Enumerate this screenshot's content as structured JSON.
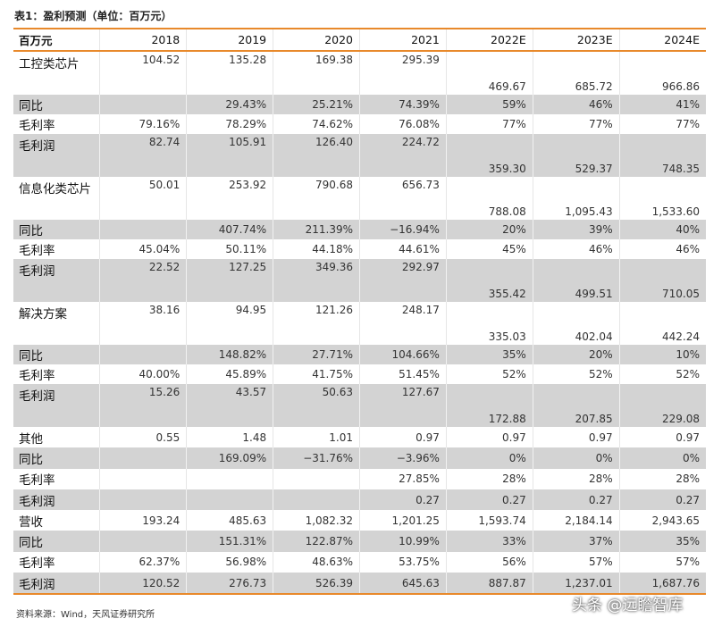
{
  "title": "表1：盈利预测（单位：百万元）",
  "table": {
    "header": [
      "百万元",
      "2018",
      "2019",
      "2020",
      "2021",
      "2022E",
      "2023E",
      "2024E"
    ],
    "rows": [
      [
        "工控类芯片",
        "104.52",
        "135.28",
        "169.38",
        "295.39",
        "469.67",
        "685.72",
        "966.86"
      ],
      [
        "同比",
        null,
        "29.43%",
        "25.21%",
        "74.39%",
        "59%",
        "46%",
        "41%"
      ],
      [
        "毛利率",
        "79.16%",
        "78.29%",
        "74.62%",
        "76.08%",
        "77%",
        "77%",
        "77%"
      ],
      [
        "毛利润",
        "82.74",
        "105.91",
        "126.40",
        "224.72",
        "359.30",
        "529.37",
        "748.35"
      ],
      [
        "信息化类芯片",
        "50.01",
        "253.92",
        "790.68",
        "656.73",
        "788.08",
        "1,095.43",
        "1,533.60"
      ],
      [
        "同比",
        null,
        "407.74%",
        "211.39%",
        "−16.94%",
        "20%",
        "39%",
        "40%"
      ],
      [
        "毛利率",
        "45.04%",
        "50.11%",
        "44.18%",
        "44.61%",
        "45%",
        "46%",
        "46%"
      ],
      [
        "毛利润",
        "22.52",
        "127.25",
        "349.36",
        "292.97",
        "355.42",
        "499.51",
        "710.05"
      ],
      [
        "解决方案",
        "38.16",
        "94.95",
        "121.26",
        "248.17",
        "335.03",
        "402.04",
        "442.24"
      ],
      [
        "同比",
        null,
        "148.82%",
        "27.71%",
        "104.66%",
        "35%",
        "20%",
        "10%"
      ],
      [
        "毛利率",
        "40.00%",
        "45.89%",
        "41.75%",
        "51.45%",
        "52%",
        "52%",
        "52%"
      ],
      [
        "毛利润",
        "15.26",
        "43.57",
        "50.63",
        "127.67",
        "172.88",
        "207.85",
        "229.08"
      ],
      [
        "其他",
        "0.55",
        "1.48",
        "1.01",
        "0.97",
        "0.97",
        "0.97",
        "0.97"
      ],
      [
        "同比",
        null,
        "169.09%",
        "−31.76%",
        "−3.96%",
        "0%",
        "0%",
        "0%"
      ],
      [
        "毛利率",
        null,
        null,
        null,
        "27.85%",
        "28%",
        "28%",
        "28%"
      ],
      [
        "毛利润",
        null,
        null,
        null,
        "0.27",
        "0.27",
        "0.27",
        "0.27"
      ],
      [
        "营收",
        "193.24",
        "485.63",
        "1,082.32",
        "1,201.25",
        "1,593.74",
        "2,184.14",
        "2,943.65"
      ],
      [
        "同比",
        null,
        "151.31%",
        "122.87%",
        "10.99%",
        "33%",
        "37%",
        "35%"
      ],
      [
        "毛利率",
        "62.37%",
        "56.98%",
        "48.63%",
        "53.75%",
        "56%",
        "57%",
        "57%"
      ],
      [
        "毛利润",
        "120.52",
        "276.73",
        "526.39",
        "645.63",
        "887.87",
        "1,237.01",
        "1,687.76"
      ]
    ]
  },
  "source": "资料来源：Wind，天风证券研究所",
  "watermark": "头条 @远瞻智库"
}
